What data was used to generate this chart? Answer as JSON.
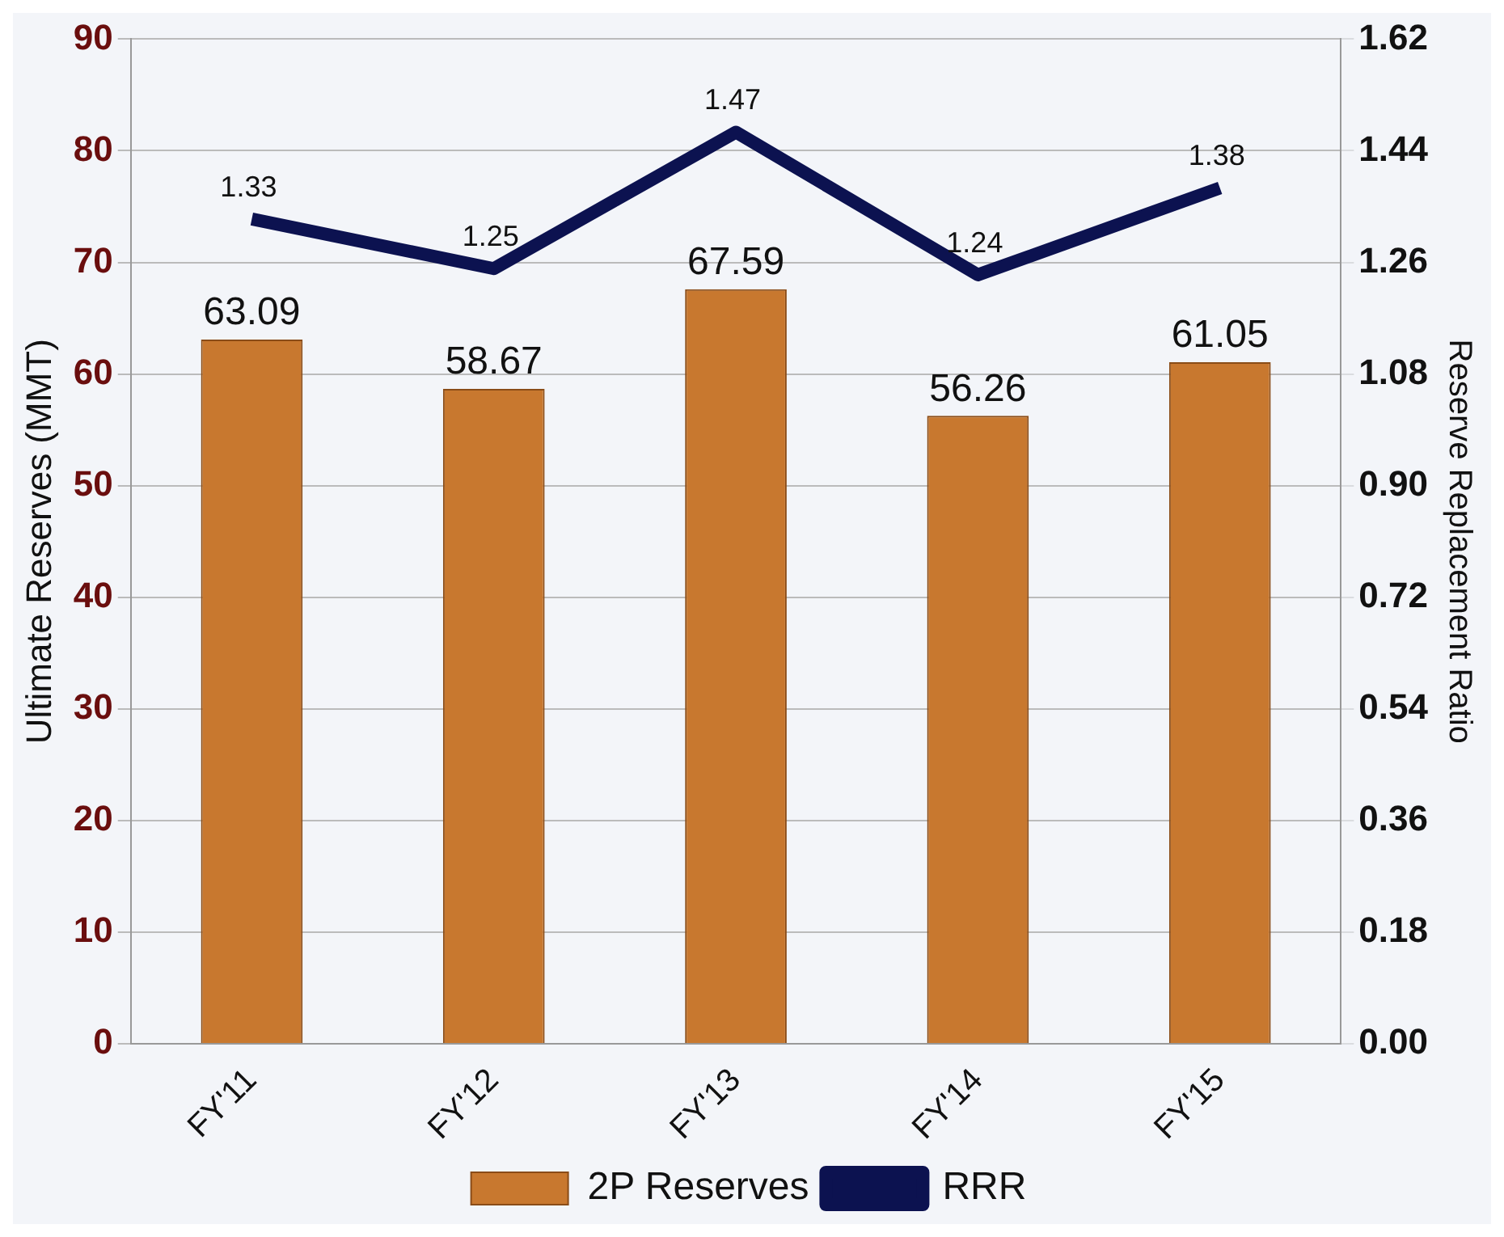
{
  "chart_data": {
    "type": "bar",
    "categories": [
      "FY'11",
      "FY'12",
      "FY'13",
      "FY'14",
      "FY'15"
    ],
    "ylabel": "Ultimate Reserves (MMT)",
    "y2label": "Reserve Replacement Ratio",
    "series": [
      {
        "name": "2P Reserves",
        "color": "#c8782f",
        "values": [
          63.09,
          58.67,
          67.59,
          56.26,
          61.05
        ]
      },
      {
        "name": "RRR",
        "type": "line",
        "axis": "y2",
        "color": "#0c1250",
        "values": [
          1.33,
          1.25,
          1.47,
          1.24,
          1.38
        ]
      }
    ],
    "ylim": [
      0,
      90
    ],
    "yticks": [
      0,
      10,
      20,
      30,
      40,
      50,
      60,
      70,
      80,
      90
    ],
    "y2lim": [
      0,
      1.62
    ],
    "y2ticks": [
      {
        "value": 0,
        "label": "0.00"
      },
      {
        "value": 0.18,
        "label": "0.18"
      },
      {
        "value": 0.36,
        "label": "0.36"
      },
      {
        "value": 0.54,
        "label": "0.54"
      },
      {
        "value": 0.72,
        "label": "0.72"
      },
      {
        "value": 0.9,
        "label": "0.90"
      },
      {
        "value": 1.08,
        "label": "1.08"
      },
      {
        "value": 1.26,
        "label": "1.26"
      },
      {
        "value": 1.44,
        "label": "1.44"
      },
      {
        "value": 1.62,
        "label": "1.62"
      }
    ],
    "grid": "y",
    "legend": "bottom",
    "data_labels": true,
    "marker": "none"
  }
}
